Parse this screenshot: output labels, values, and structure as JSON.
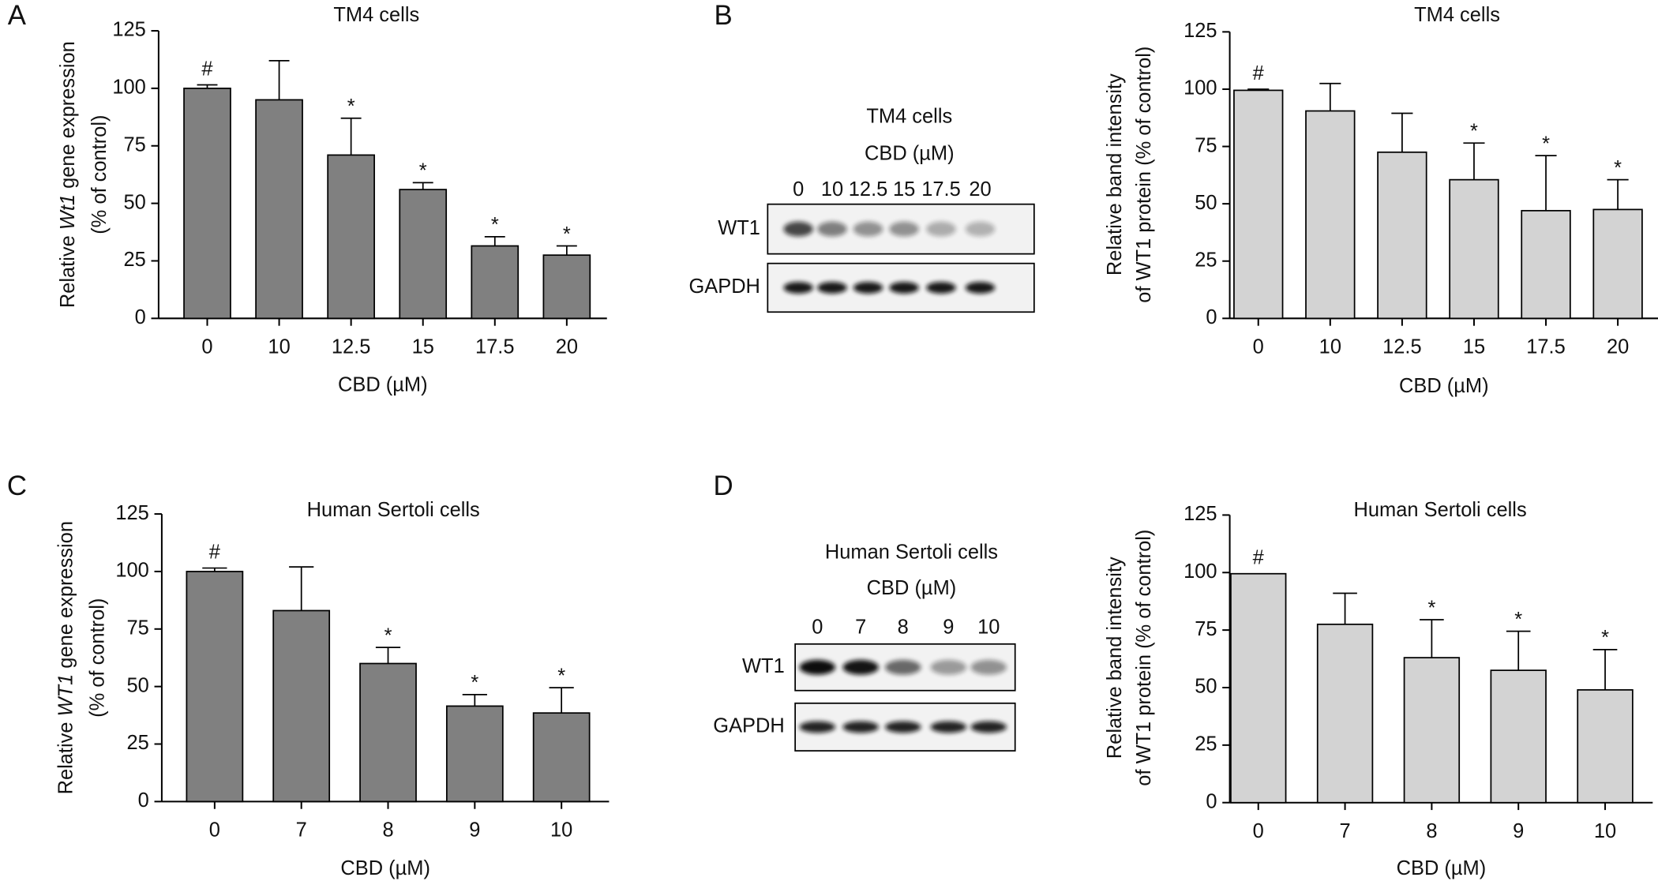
{
  "panels": [
    "A",
    "B",
    "C",
    "D"
  ],
  "chart_data": [
    {
      "type": "bar",
      "title": "TM4 cells",
      "x_label": "CBD (µM)",
      "y_label": [
        "Relative ",
        "Wt1",
        " gene expression"
      ],
      "y_label_2": "(% of control)",
      "categories": [
        "0",
        "10",
        "12.5",
        "15",
        "17.5",
        "20"
      ],
      "values": [
        100,
        95,
        71,
        56,
        31.5,
        27.5
      ],
      "errors": [
        1.5,
        17,
        16,
        3,
        4,
        4
      ],
      "annotations": [
        "#",
        null,
        "*",
        "*",
        "*",
        "*"
      ],
      "color": "#808080",
      "ylim": [
        0,
        125
      ],
      "yticks": [
        0,
        25,
        50,
        75,
        100,
        125
      ]
    },
    {
      "type": "bar",
      "title": "TM4 cells",
      "x_label": "CBD (µM)",
      "y_label": [
        "Relative band intensity"
      ],
      "y_label_2": "of WT1 protein (% of control)",
      "categories": [
        "0",
        "10",
        "12.5",
        "15",
        "17.5",
        "20"
      ],
      "values": [
        99.5,
        90.5,
        72.5,
        60.5,
        47,
        47.5
      ],
      "errors": [
        0.5,
        12,
        17,
        16,
        24,
        13
      ],
      "annotations": [
        "#",
        null,
        null,
        "*",
        "*",
        "*"
      ],
      "color": "#d3d3d3",
      "ylim": [
        0,
        125
      ],
      "yticks": [
        0,
        25,
        50,
        75,
        100,
        125
      ]
    },
    {
      "type": "bar",
      "title": "Human Sertoli cells",
      "x_label": "CBD (µM)",
      "y_label": [
        "Relative ",
        "WT1",
        " gene expression"
      ],
      "y_label_2": "(% of control)",
      "categories": [
        "0",
        "7",
        "8",
        "9",
        "10"
      ],
      "values": [
        100,
        83,
        60,
        41.5,
        38.5
      ],
      "errors": [
        1.5,
        19,
        7,
        5,
        11
      ],
      "annotations": [
        "#",
        null,
        "*",
        "*",
        "*"
      ],
      "color": "#808080",
      "ylim": [
        0,
        125
      ],
      "yticks": [
        0,
        25,
        50,
        75,
        100,
        125
      ]
    },
    {
      "type": "bar",
      "title": "Human Sertoli cells",
      "x_label": "CBD (µM)",
      "y_label": [
        "Relative band intensity"
      ],
      "y_label_2": "of WT1 protein (% of control)",
      "categories": [
        "0",
        "7",
        "8",
        "9",
        "10"
      ],
      "values": [
        99.5,
        77.5,
        63,
        57.5,
        49
      ],
      "errors": [
        0,
        13.5,
        16.5,
        17,
        17.5
      ],
      "annotations": [
        "#",
        null,
        "*",
        "*",
        "*"
      ],
      "color": "#d3d3d3",
      "ylim": [
        0,
        125
      ],
      "yticks": [
        0,
        25,
        50,
        75,
        100,
        125
      ]
    }
  ],
  "blots": [
    {
      "title": "TM4 cells",
      "subtitle": "CBD (µM)",
      "lanes": [
        "0",
        "10",
        "12.5",
        "15",
        "17.5",
        "20"
      ],
      "rows": [
        "WT1",
        "GAPDH"
      ]
    },
    {
      "title": "Human Sertoli cells",
      "subtitle": "CBD (µM)",
      "lanes": [
        "0",
        "7",
        "8",
        "9",
        "10"
      ],
      "rows": [
        "WT1",
        "GAPDH"
      ]
    }
  ]
}
